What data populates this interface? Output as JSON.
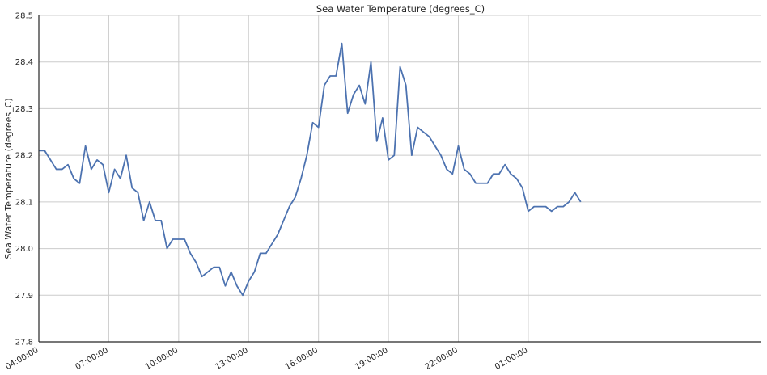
{
  "chart_data": {
    "type": "line",
    "title": "Sea Water Temperature (degrees_C)",
    "xlabel": "",
    "ylabel": "Sea Water Temperature (degrees_C)",
    "ylim": [
      27.8,
      28.5
    ],
    "xlim": [
      4.0,
      35.0
    ],
    "y_ticks": [
      "27.8",
      "27.9",
      "28.0",
      "28.1",
      "28.2",
      "28.3",
      "28.4",
      "28.5"
    ],
    "x_ticks": [
      {
        "label": "04:00:00",
        "x": 4.0
      },
      {
        "label": "07:00:00",
        "x": 7.0
      },
      {
        "label": "10:00:00",
        "x": 10.0
      },
      {
        "label": "13:00:00",
        "x": 13.0
      },
      {
        "label": "16:00:00",
        "x": 16.0
      },
      {
        "label": "19:00:00",
        "x": 19.0
      },
      {
        "label": "22:00:00",
        "x": 22.0
      },
      {
        "label": "01:00:00",
        "x": 25.0
      }
    ],
    "grid": true,
    "series": [
      {
        "color": "#4c72b0",
        "points": [
          [
            4.0,
            28.21
          ],
          [
            4.25,
            28.21
          ],
          [
            4.5,
            28.19
          ],
          [
            4.75,
            28.17
          ],
          [
            5.0,
            28.17
          ],
          [
            5.25,
            28.18
          ],
          [
            5.5,
            28.15
          ],
          [
            5.75,
            28.14
          ],
          [
            6.0,
            28.22
          ],
          [
            6.25,
            28.17
          ],
          [
            6.5,
            28.19
          ],
          [
            6.75,
            28.18
          ],
          [
            7.0,
            28.12
          ],
          [
            7.25,
            28.17
          ],
          [
            7.5,
            28.15
          ],
          [
            7.75,
            28.2
          ],
          [
            8.0,
            28.13
          ],
          [
            8.25,
            28.12
          ],
          [
            8.5,
            28.06
          ],
          [
            8.75,
            28.1
          ],
          [
            9.0,
            28.06
          ],
          [
            9.25,
            28.06
          ],
          [
            9.5,
            28.0
          ],
          [
            9.75,
            28.02
          ],
          [
            10.0,
            28.02
          ],
          [
            10.25,
            28.02
          ],
          [
            10.5,
            27.99
          ],
          [
            10.75,
            27.97
          ],
          [
            11.0,
            27.94
          ],
          [
            11.25,
            27.95
          ],
          [
            11.5,
            27.96
          ],
          [
            11.75,
            27.96
          ],
          [
            12.0,
            27.92
          ],
          [
            12.25,
            27.95
          ],
          [
            12.5,
            27.92
          ],
          [
            12.75,
            27.9
          ],
          [
            13.0,
            27.93
          ],
          [
            13.25,
            27.95
          ],
          [
            13.5,
            27.99
          ],
          [
            13.75,
            27.99
          ],
          [
            14.0,
            28.01
          ],
          [
            14.25,
            28.03
          ],
          [
            14.5,
            28.06
          ],
          [
            14.75,
            28.09
          ],
          [
            15.0,
            28.11
          ],
          [
            15.25,
            28.15
          ],
          [
            15.5,
            28.2
          ],
          [
            15.75,
            28.27
          ],
          [
            16.0,
            28.26
          ],
          [
            16.25,
            28.35
          ],
          [
            16.5,
            28.37
          ],
          [
            16.75,
            28.37
          ],
          [
            17.0,
            28.44
          ],
          [
            17.25,
            28.29
          ],
          [
            17.5,
            28.33
          ],
          [
            17.75,
            28.35
          ],
          [
            18.0,
            28.31
          ],
          [
            18.25,
            28.4
          ],
          [
            18.5,
            28.23
          ],
          [
            18.75,
            28.28
          ],
          [
            19.0,
            28.19
          ],
          [
            19.25,
            28.2
          ],
          [
            19.5,
            28.39
          ],
          [
            19.75,
            28.35
          ],
          [
            20.0,
            28.2
          ],
          [
            20.25,
            28.26
          ],
          [
            20.5,
            28.25
          ],
          [
            20.75,
            28.24
          ],
          [
            21.0,
            28.22
          ],
          [
            21.25,
            28.2
          ],
          [
            21.5,
            28.17
          ],
          [
            21.75,
            28.16
          ],
          [
            22.0,
            28.22
          ],
          [
            22.25,
            28.17
          ],
          [
            22.5,
            28.16
          ],
          [
            22.75,
            28.14
          ],
          [
            23.0,
            28.14
          ],
          [
            23.25,
            28.14
          ],
          [
            23.5,
            28.16
          ],
          [
            23.75,
            28.16
          ],
          [
            24.0,
            28.18
          ],
          [
            24.25,
            28.16
          ],
          [
            24.5,
            28.15
          ],
          [
            24.75,
            28.13
          ],
          [
            25.0,
            28.08
          ],
          [
            25.25,
            28.09
          ],
          [
            25.5,
            28.09
          ],
          [
            25.75,
            28.09
          ],
          [
            26.0,
            28.08
          ],
          [
            26.25,
            28.09
          ],
          [
            26.5,
            28.09
          ],
          [
            26.75,
            28.1
          ],
          [
            27.0,
            28.12
          ],
          [
            27.25,
            28.1
          ]
        ]
      }
    ]
  }
}
